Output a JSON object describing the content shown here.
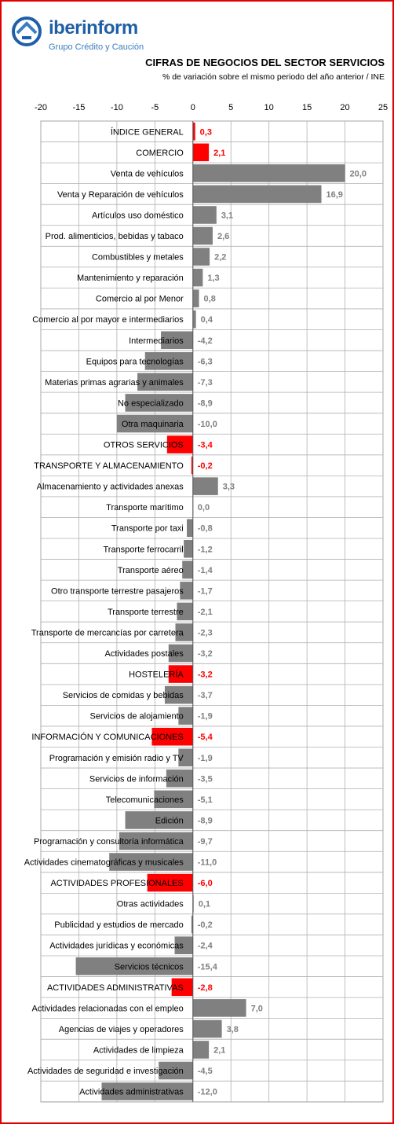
{
  "header": {
    "brand": "iberinform",
    "tagline": "Grupo Crédito y Caución",
    "title": "CIFRAS DE NEGOCIOS DEL SECTOR SERVICIOS",
    "subtitle": "% de variación sobre el mismo periodo del año anterior / INE"
  },
  "colors": {
    "highlight": "#ff0000",
    "normal": "#808080",
    "grid": "#b0b0b0",
    "brand": "#1f5fa8"
  },
  "chart_data": {
    "type": "bar",
    "orientation": "horizontal",
    "title": "CIFRAS DE NEGOCIOS DEL SECTOR SERVICIOS",
    "subtitle": "% de variación sobre el mismo periodo del año anterior / INE",
    "xlim": [
      -20,
      25
    ],
    "ticks": [
      -20,
      -15,
      -10,
      -5,
      0,
      5,
      10,
      15,
      20,
      25
    ],
    "tick_labels": [
      "-20",
      "-15",
      "-10",
      "-5",
      "0",
      "5",
      "10",
      "15",
      "20",
      "25"
    ],
    "grid": true,
    "categories": [
      "ÍNDICE GENERAL",
      "COMERCIO",
      "Venta de vehículos",
      "Venta y Reparación  de vehículos",
      "Artículos uso doméstico",
      "Prod. alimenticios, bebidas y tabaco",
      "Combustibles y metales",
      "Mantenimiento y reparación",
      "Comercio al por Menor",
      "Comercio al por mayor e intermediarios",
      "Intermediarios",
      "Equipos para tecnologías",
      "Materias primas agrarias  y animales",
      "No especializado",
      "Otra maquinaria",
      "OTROS SERVICIOS",
      "TRANSPORTE Y ALMACENAMIENTO",
      "Almacenamiento y actividades anexas",
      "Transporte marítimo",
      "Transporte por taxi",
      "Transporte ferrocarril",
      "Transporte aéreo",
      "Otro transporte terrestre pasajeros",
      "Transporte terrestre",
      "Transporte de mercancías por carretera",
      "Actividades postales",
      "HOSTELERÍA",
      "Servicios de comidas y bebidas",
      "Servicios de alojamiento",
      "INFORMACIÓN Y COMUNICACIONES",
      "Programación y emisión radio y TV",
      "Servicios de información",
      "Telecomunicaciones",
      "Edición",
      "Programación y consultoría informática",
      "Actividades cinematográficas  y musicales",
      "ACTIVIDADES PROFESIONALES",
      "Otras actividades",
      "Publicidad  y estudios de mercado",
      "Actividades jurídicas  y económicas",
      "Servicios técnicos",
      "ACTIVIDADES ADMINISTRATIVAS",
      "Actividades relacionadas  con el empleo",
      "Agencias de viajes y operadores",
      "Actividades de limpieza",
      "Actividades de seguridad e investigación",
      "Actividades administrativas"
    ],
    "values": [
      0.3,
      2.1,
      20.0,
      16.9,
      3.1,
      2.6,
      2.2,
      1.3,
      0.8,
      0.4,
      -4.2,
      -6.3,
      -7.3,
      -8.9,
      -10.0,
      -3.4,
      -0.2,
      3.3,
      0.0,
      -0.8,
      -1.2,
      -1.4,
      -1.7,
      -2.1,
      -2.3,
      -3.2,
      -3.2,
      -3.7,
      -1.9,
      -5.4,
      -1.9,
      -3.5,
      -5.1,
      -8.9,
      -9.7,
      -11.0,
      -6.0,
      0.1,
      -0.2,
      -2.4,
      -15.4,
      -2.8,
      7.0,
      3.8,
      2.1,
      -4.5,
      -12.0
    ],
    "value_labels": [
      "0,3",
      "2,1",
      "20,0",
      "16,9",
      "3,1",
      "2,6",
      "2,2",
      "1,3",
      "0,8",
      "0,4",
      "-4,2",
      "-6,3",
      "-7,3",
      "-8,9",
      "-10,0",
      "-3,4",
      "-0,2",
      "3,3",
      "0,0",
      "-0,8",
      "-1,2",
      "-1,4",
      "-1,7",
      "-2,1",
      "-2,3",
      "-3,2",
      "-3,2",
      "-3,7",
      "-1,9",
      "-5,4",
      "-1,9",
      "-3,5",
      "-5,1",
      "-8,9",
      "-9,7",
      "-11,0",
      "-6,0",
      "0,1",
      "-0,2",
      "-2,4",
      "-15,4",
      "-2,8",
      "7,0",
      "3,8",
      "2,1",
      "-4,5",
      "-12,0"
    ],
    "highlighted": [
      "ÍNDICE GENERAL",
      "COMERCIO",
      "OTROS SERVICIOS",
      "TRANSPORTE Y ALMACENAMIENTO",
      "HOSTELERÍA",
      "INFORMACIÓN Y COMUNICACIONES",
      "ACTIVIDADES PROFESIONALES",
      "ACTIVIDADES ADMINISTRATIVAS"
    ]
  }
}
